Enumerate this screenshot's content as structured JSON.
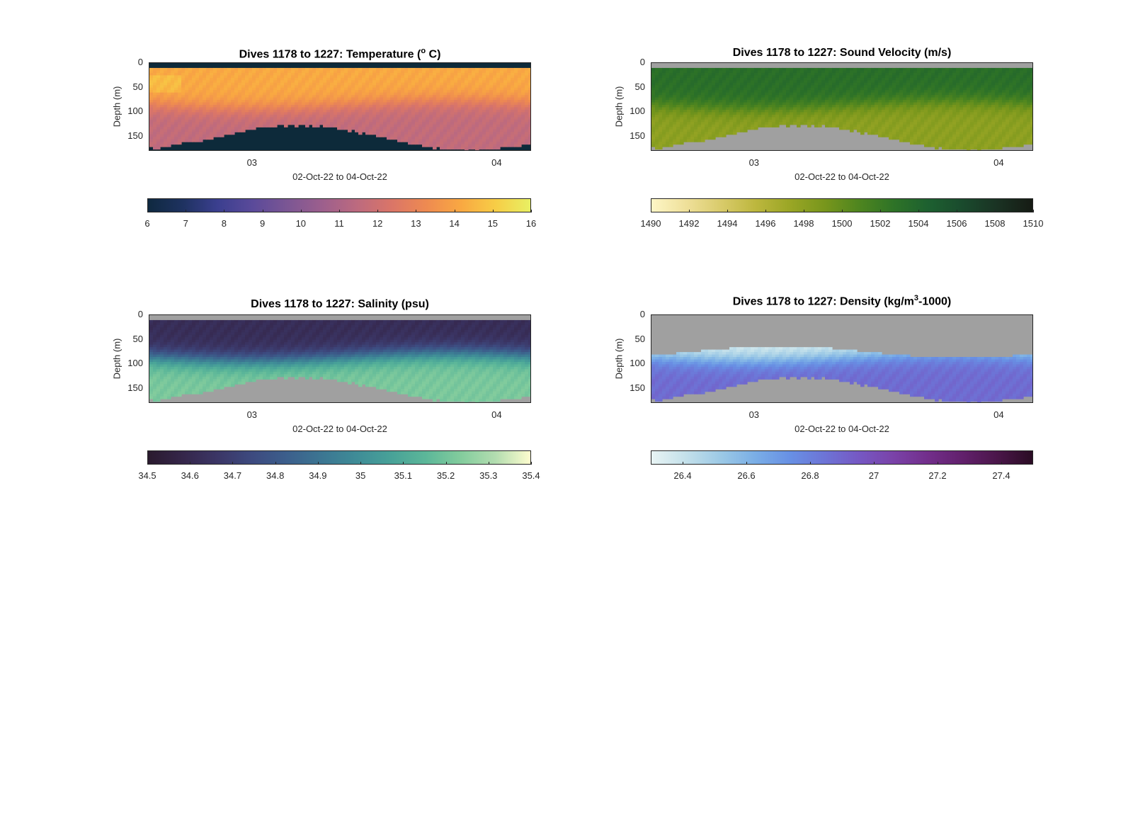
{
  "chart_data": [
    {
      "type": "heatmap",
      "title_prefix": "Dives 1178 to 1227: Temperature (",
      "title_super": "o",
      "title_suffix": " C)",
      "ylabel": "Depth (m)",
      "xlabel": "02-Oct-22 to 04-Oct-22",
      "yticks": [
        "0",
        "50",
        "100",
        "150"
      ],
      "ylim": [
        0,
        180
      ],
      "xticks": [
        "03",
        "04"
      ],
      "colormap": [
        "#0f2940",
        "#1e3260",
        "#3b3f8f",
        "#5a4a9a",
        "#7b5694",
        "#9c5f8d",
        "#bc6a7f",
        "#da7568",
        "#ee8a51",
        "#f9a842",
        "#f7cd46",
        "#e8f063"
      ],
      "nodata_color": "#0d2a3a",
      "colorbar_ticks": [
        "6",
        "7",
        "8",
        "9",
        "10",
        "11",
        "12",
        "13",
        "14",
        "15",
        "16"
      ],
      "clim": [
        6,
        16
      ],
      "surface_value": 14.2,
      "bottom_value": 11.6
    },
    {
      "type": "heatmap",
      "title_prefix": "Dives 1178 to 1227: Sound Velocity (m/s)",
      "title_super": "",
      "title_suffix": "",
      "ylabel": "Depth (m)",
      "xlabel": "02-Oct-22 to 04-Oct-22",
      "yticks": [
        "0",
        "50",
        "100",
        "150"
      ],
      "ylim": [
        0,
        180
      ],
      "xticks": [
        "03",
        "04"
      ],
      "colormap": [
        "#fdf6c6",
        "#efe09a",
        "#d9cb6b",
        "#bdb73e",
        "#9aa625",
        "#78961c",
        "#4e851f",
        "#2e7327",
        "#1d6030",
        "#1a4a2d",
        "#1a3223",
        "#161b14"
      ],
      "nodata_color": "#a0a0a0",
      "colorbar_ticks": [
        "1490",
        "1492",
        "1494",
        "1496",
        "1498",
        "1500",
        "1502",
        "1504",
        "1506",
        "1508",
        "1510"
      ],
      "clim": [
        1490,
        1510
      ],
      "surface_value": 1503.2,
      "bottom_value": 1498.0
    },
    {
      "type": "heatmap",
      "title_prefix": "Dives 1178 to 1227: Salinity (psu)",
      "title_super": "",
      "title_suffix": "",
      "ylabel": "Depth (m)",
      "xlabel": "02-Oct-22 to 04-Oct-22",
      "yticks": [
        "0",
        "50",
        "100",
        "150"
      ],
      "ylim": [
        0,
        180
      ],
      "xticks": [
        "03",
        "04"
      ],
      "colormap": [
        "#2a1a2e",
        "#35264a",
        "#3b3666",
        "#3d4a7f",
        "#3c5f8c",
        "#3c7692",
        "#3f8c97",
        "#48a298",
        "#5cb799",
        "#83cc9d",
        "#b3ddb0",
        "#fdfcce"
      ],
      "nodata_color": "#a0a0a0",
      "colorbar_ticks": [
        "34.5",
        "34.6",
        "34.7",
        "34.8",
        "34.9",
        "35",
        "35.1",
        "35.2",
        "35.3",
        "35.4"
      ],
      "clim": [
        34.5,
        35.4
      ],
      "surface_value": 34.62,
      "bottom_value": 35.22
    },
    {
      "type": "heatmap",
      "title_prefix": "Dives 1178 to 1227: Density (kg/m",
      "title_super": "3",
      "title_suffix": "-1000)",
      "ylabel": "Depth (m)",
      "xlabel": "02-Oct-22 to 04-Oct-22",
      "yticks": [
        "0",
        "50",
        "100",
        "150"
      ],
      "ylim": [
        0,
        180
      ],
      "xticks": [
        "03",
        "04"
      ],
      "colormap": [
        "#e8f4f4",
        "#c3e0ea",
        "#9cc9e6",
        "#7aaee6",
        "#6890e4",
        "#6d74d6",
        "#7658c3",
        "#7a42a8",
        "#722e8a",
        "#61206b",
        "#4a1649",
        "#2a0c24"
      ],
      "nodata_color": "#a0a0a0",
      "colorbar_ticks": [
        "26.4",
        "26.6",
        "26.8",
        "27",
        "27.2",
        "27.4"
      ],
      "clim": [
        26.3,
        27.5
      ],
      "surface_value": 26.35,
      "bottom_value": 26.88
    }
  ]
}
